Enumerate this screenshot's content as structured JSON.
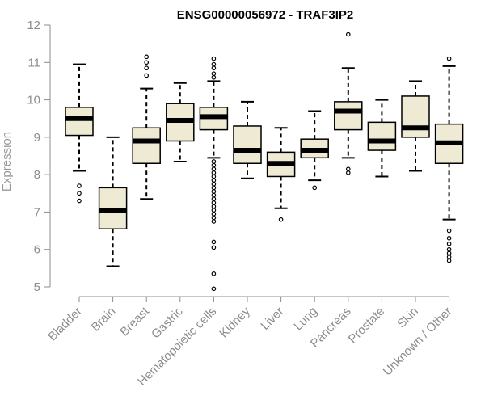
{
  "chart_data": {
    "type": "boxplot",
    "title": "ENSG00000056972 - TRAF3IP2",
    "xlabel": "",
    "ylabel": "Expression",
    "ylim": [
      5,
      12
    ],
    "yticks": [
      5,
      6,
      7,
      8,
      9,
      10,
      11,
      12
    ],
    "categories": [
      "Bladder",
      "Brain",
      "Breast",
      "Gastric",
      "Hematopoietic cells",
      "Kidney",
      "Liver",
      "Lung",
      "Pancreas",
      "Prostate",
      "Skin",
      "Unknown / Other"
    ],
    "boxes": [
      {
        "name": "Bladder",
        "whisker_low": 8.1,
        "q1": 9.05,
        "median": 9.5,
        "q3": 9.8,
        "whisker_high": 10.95,
        "outliers": [
          7.3,
          7.5,
          7.7
        ]
      },
      {
        "name": "Brain",
        "whisker_low": 5.55,
        "q1": 6.55,
        "median": 7.05,
        "q3": 7.65,
        "whisker_high": 9.0,
        "outliers": []
      },
      {
        "name": "Breast",
        "whisker_low": 7.35,
        "q1": 8.3,
        "median": 8.9,
        "q3": 9.25,
        "whisker_high": 10.3,
        "outliers": [
          10.65,
          10.85,
          11.0,
          11.15
        ]
      },
      {
        "name": "Gastric",
        "whisker_low": 8.35,
        "q1": 8.9,
        "median": 9.45,
        "q3": 9.9,
        "whisker_high": 10.45,
        "outliers": []
      },
      {
        "name": "Hematopoietic cells",
        "whisker_low": 8.45,
        "q1": 9.2,
        "median": 9.55,
        "q3": 9.8,
        "whisker_high": 10.5,
        "outliers": [
          4.95,
          5.35,
          6.05,
          6.2,
          6.75,
          6.85,
          6.95,
          7.05,
          7.15,
          7.25,
          7.35,
          7.45,
          7.55,
          7.65,
          7.75,
          7.85,
          7.95,
          8.05,
          8.15,
          8.25,
          8.35,
          10.6,
          10.7,
          10.85,
          10.95,
          11.1
        ]
      },
      {
        "name": "Kidney",
        "whisker_low": 7.9,
        "q1": 8.3,
        "median": 8.65,
        "q3": 9.3,
        "whisker_high": 9.95,
        "outliers": []
      },
      {
        "name": "Liver",
        "whisker_low": 7.1,
        "q1": 7.95,
        "median": 8.3,
        "q3": 8.6,
        "whisker_high": 9.25,
        "outliers": [
          6.8
        ]
      },
      {
        "name": "Lung",
        "whisker_low": 7.85,
        "q1": 8.45,
        "median": 8.65,
        "q3": 8.95,
        "whisker_high": 9.7,
        "outliers": [
          7.65
        ]
      },
      {
        "name": "Pancreas",
        "whisker_low": 8.45,
        "q1": 9.2,
        "median": 9.7,
        "q3": 9.95,
        "whisker_high": 10.85,
        "outliers": [
          8.05,
          8.15,
          11.75
        ]
      },
      {
        "name": "Prostate",
        "whisker_low": 7.95,
        "q1": 8.65,
        "median": 8.9,
        "q3": 9.4,
        "whisker_high": 10.0,
        "outliers": []
      },
      {
        "name": "Skin",
        "whisker_low": 8.1,
        "q1": 9.0,
        "median": 9.25,
        "q3": 10.1,
        "whisker_high": 10.5,
        "outliers": []
      },
      {
        "name": "Unknown / Other",
        "whisker_low": 6.8,
        "q1": 8.3,
        "median": 8.85,
        "q3": 9.35,
        "whisker_high": 10.9,
        "outliers": [
          5.7,
          5.8,
          5.9,
          6.0,
          6.15,
          6.3,
          6.5,
          11.1
        ]
      }
    ]
  },
  "colors": {
    "box_fill": "#eeead3",
    "axis": "#8c8c8c",
    "ink": "#000000"
  }
}
